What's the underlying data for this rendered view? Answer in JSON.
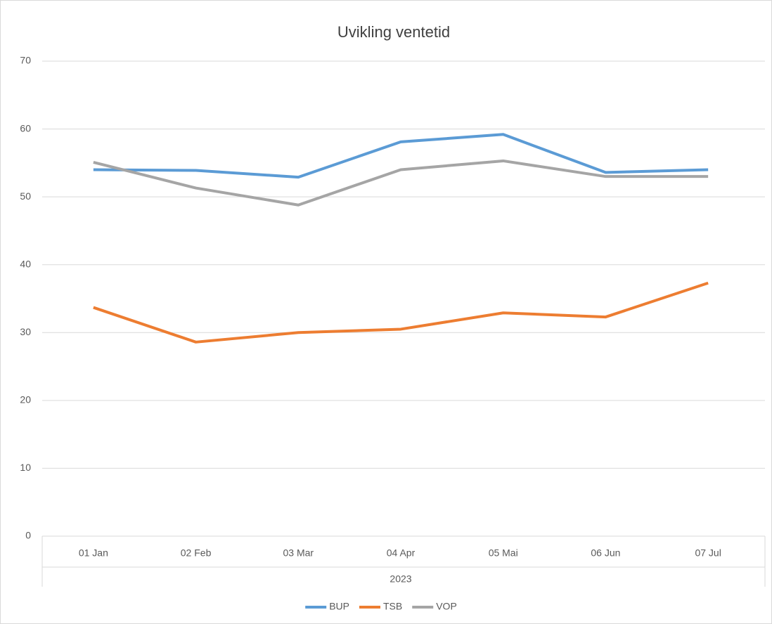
{
  "chart_data": {
    "type": "line",
    "title": "Uvikling ventetid",
    "categories": [
      "01 Jan",
      "02 Feb",
      "03 Mar",
      "04 Apr",
      "05 Mai",
      "06 Jun",
      "07 Jul"
    ],
    "category_group": "2023",
    "series": [
      {
        "name": "BUP",
        "color": "#5b9bd5",
        "values": [
          54.0,
          53.9,
          52.9,
          58.1,
          59.2,
          53.6,
          54.0
        ]
      },
      {
        "name": "TSB",
        "color": "#ed7d31",
        "values": [
          33.7,
          28.6,
          30.0,
          30.5,
          32.9,
          32.3,
          37.3
        ]
      },
      {
        "name": "VOP",
        "color": "#a5a5a5",
        "values": [
          55.1,
          51.3,
          48.8,
          54.0,
          55.3,
          53.0,
          53.0
        ]
      }
    ],
    "ylim": [
      0,
      70
    ],
    "yticks": [
      0,
      10,
      20,
      30,
      40,
      50,
      60,
      70
    ],
    "grid": true,
    "legend": "bottom"
  }
}
